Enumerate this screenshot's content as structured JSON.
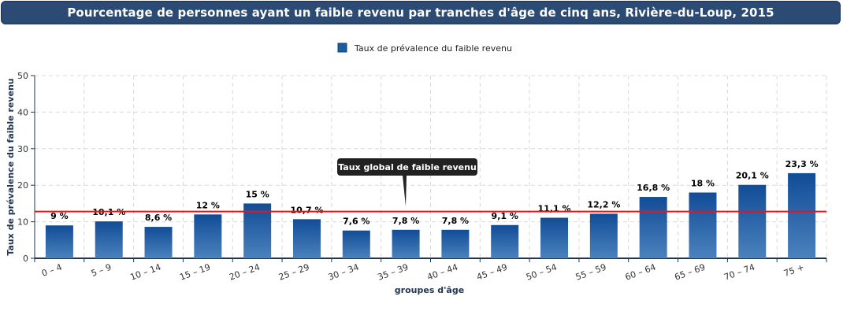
{
  "title": "Pourcentage de personnes ayant un faible revenu par tranches d'âge de cinq ans, Rivière-du-Loup, 2015",
  "colors": {
    "bar_top": "#114c96",
    "bar_bottom": "#4b82bd",
    "reference_line": "#e8141a",
    "title_bg": "#2b4a74"
  },
  "chart_data": {
    "type": "bar",
    "categories": [
      "0 – 4",
      "5 – 9",
      "10 – 14",
      "15 – 19",
      "20 – 24",
      "25 – 29",
      "30 – 34",
      "35 – 39",
      "40 – 44",
      "45 – 49",
      "50 – 54",
      "55 – 59",
      "60 – 64",
      "65 – 69",
      "70 – 74",
      "75 +"
    ],
    "values": [
      9,
      10.1,
      8.6,
      12,
      15,
      10.7,
      7.6,
      7.8,
      7.8,
      9.1,
      11.1,
      12.2,
      16.8,
      18,
      20.1,
      23.3
    ],
    "data_labels": [
      "9 %",
      "10,1 %",
      "8,6 %",
      "12 %",
      "15 %",
      "10,7 %",
      "7,6 %",
      "7,8 %",
      "7,8 %",
      "9,1 %",
      "11,1 %",
      "12,2 %",
      "16,8 %",
      "18 %",
      "20,1 %",
      "23,3 %"
    ],
    "series_name": "Taux de prévalence du faible revenu",
    "xlabel": "groupes d'âge",
    "ylabel": "Taux de prévalence du faible revenu",
    "ylim": [
      0,
      50
    ],
    "yticks": [
      "0",
      "10",
      "20",
      "30",
      "40",
      "50"
    ],
    "ytick_values": [
      0,
      10,
      20,
      30,
      40,
      50
    ],
    "reference_line": {
      "value": 12.8,
      "label": "Taux global de faible revenu"
    },
    "legend_position": "top-center",
    "grid": true
  }
}
